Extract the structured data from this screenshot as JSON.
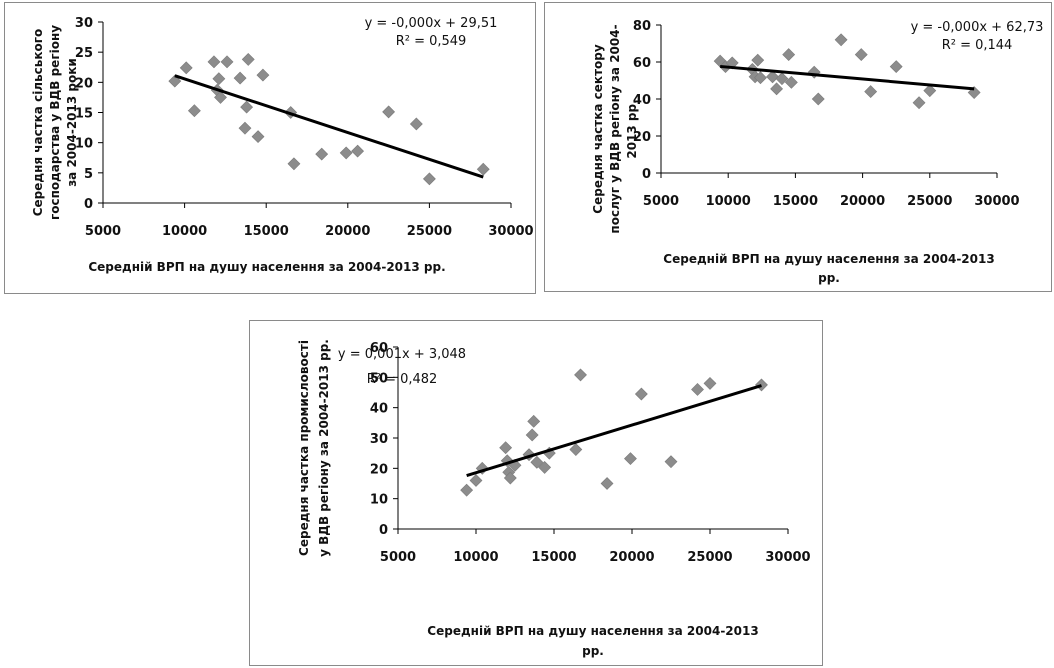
{
  "chart_data": [
    {
      "type": "scatter",
      "xlabel": "Середній ВРП на душу населення за 2004-2013 рр.",
      "ylabel": [
        "Середня частка сільського",
        "господарства у ВДВ регіону",
        "за 2004-2013 роки"
      ],
      "equation": [
        "y = -0,000x + 29,51",
        "R² = 0,549"
      ],
      "xlim": [
        5000,
        30000
      ],
      "ylim": [
        0,
        30
      ],
      "xticks": [
        "5000",
        "10000",
        "15000",
        "20000",
        "25000",
        "30000"
      ],
      "yticks": [
        "0",
        "5",
        "10",
        "15",
        "20",
        "25",
        "30"
      ],
      "points": [
        {
          "x": 9400,
          "y": 20.2
        },
        {
          "x": 10100,
          "y": 22.4
        },
        {
          "x": 10600,
          "y": 15.3
        },
        {
          "x": 11800,
          "y": 23.4
        },
        {
          "x": 12000,
          "y": 18.7
        },
        {
          "x": 12100,
          "y": 20.6
        },
        {
          "x": 12200,
          "y": 17.5
        },
        {
          "x": 12600,
          "y": 23.4
        },
        {
          "x": 13400,
          "y": 20.7
        },
        {
          "x": 13700,
          "y": 12.4
        },
        {
          "x": 13800,
          "y": 15.9
        },
        {
          "x": 13900,
          "y": 23.8
        },
        {
          "x": 14500,
          "y": 11.0
        },
        {
          "x": 14800,
          "y": 21.2
        },
        {
          "x": 16500,
          "y": 15.0
        },
        {
          "x": 16700,
          "y": 6.5
        },
        {
          "x": 18400,
          "y": 8.1
        },
        {
          "x": 19900,
          "y": 8.3
        },
        {
          "x": 20600,
          "y": 8.6
        },
        {
          "x": 22500,
          "y": 15.1
        },
        {
          "x": 24200,
          "y": 13.1
        },
        {
          "x": 25000,
          "y": 4.0
        },
        {
          "x": 28300,
          "y": 5.6
        }
      ],
      "trendline": {
        "x": [
          9400,
          28300
        ],
        "y": [
          21.1,
          4.3
        ]
      }
    },
    {
      "type": "scatter",
      "xlabel": [
        "Середній ВРП на душу населення за 2004-2013",
        "рр."
      ],
      "ylabel": [
        "Середня частка сектору",
        "послуг у ВДВ регіону за 2004-",
        "2013 рр."
      ],
      "equation": [
        "y = -0,000x + 62,73",
        "R² = 0,144"
      ],
      "xlim": [
        5000,
        30000
      ],
      "ylim": [
        0,
        80
      ],
      "xticks": [
        "5000",
        "10000",
        "15000",
        "20000",
        "25000",
        "30000"
      ],
      "yticks": [
        "0",
        "20",
        "40",
        "60",
        "80"
      ],
      "points": [
        {
          "x": 9400,
          "y": 60.5
        },
        {
          "x": 9800,
          "y": 57.5
        },
        {
          "x": 10300,
          "y": 59.5
        },
        {
          "x": 11800,
          "y": 56.0
        },
        {
          "x": 12000,
          "y": 52.0
        },
        {
          "x": 12200,
          "y": 61.0
        },
        {
          "x": 12400,
          "y": 51.5
        },
        {
          "x": 13300,
          "y": 52.0
        },
        {
          "x": 13600,
          "y": 45.5
        },
        {
          "x": 14000,
          "y": 51.0
        },
        {
          "x": 14500,
          "y": 64.0
        },
        {
          "x": 14700,
          "y": 49.0
        },
        {
          "x": 16400,
          "y": 54.5
        },
        {
          "x": 16700,
          "y": 40.0
        },
        {
          "x": 18400,
          "y": 72.0
        },
        {
          "x": 19900,
          "y": 64.0
        },
        {
          "x": 20600,
          "y": 44.0
        },
        {
          "x": 22500,
          "y": 57.5
        },
        {
          "x": 24200,
          "y": 38.0
        },
        {
          "x": 25000,
          "y": 44.5
        },
        {
          "x": 28300,
          "y": 43.5
        }
      ],
      "trendline": {
        "x": [
          9400,
          28300
        ],
        "y": [
          57.6,
          45.5
        ]
      }
    },
    {
      "type": "scatter",
      "xlabel": [
        "Середній ВРП на душу населення за 2004-2013",
        "рр."
      ],
      "ylabel": [
        "Середня частка промисловості",
        "у ВДВ регіону за 2004-2013 рр."
      ],
      "equation": [
        "y = 0,001x + 3,048",
        "R² = 0,482"
      ],
      "xlim": [
        5000,
        30000
      ],
      "ylim": [
        0,
        60
      ],
      "xticks": [
        "5000",
        "10000",
        "15000",
        "20000",
        "25000",
        "30000"
      ],
      "yticks": [
        "0",
        "10",
        "20",
        "30",
        "40",
        "50",
        "60"
      ],
      "points": [
        {
          "x": 9400,
          "y": 12.8
        },
        {
          "x": 10000,
          "y": 16.0
        },
        {
          "x": 10400,
          "y": 20.0
        },
        {
          "x": 11900,
          "y": 26.8
        },
        {
          "x": 12000,
          "y": 22.5
        },
        {
          "x": 12100,
          "y": 18.7
        },
        {
          "x": 12200,
          "y": 16.8
        },
        {
          "x": 12500,
          "y": 21.0
        },
        {
          "x": 13400,
          "y": 24.5
        },
        {
          "x": 13600,
          "y": 31.0
        },
        {
          "x": 13700,
          "y": 35.5
        },
        {
          "x": 13900,
          "y": 22.0
        },
        {
          "x": 14400,
          "y": 20.3
        },
        {
          "x": 14700,
          "y": 25.0
        },
        {
          "x": 16400,
          "y": 26.2
        },
        {
          "x": 16700,
          "y": 50.8
        },
        {
          "x": 18400,
          "y": 15.0
        },
        {
          "x": 19900,
          "y": 23.2
        },
        {
          "x": 20600,
          "y": 44.5
        },
        {
          "x": 22500,
          "y": 22.2
        },
        {
          "x": 24200,
          "y": 46.0
        },
        {
          "x": 25000,
          "y": 48.0
        },
        {
          "x": 28300,
          "y": 47.5
        }
      ],
      "trendline": {
        "x": [
          9400,
          28300
        ],
        "y": [
          17.6,
          47.3
        ]
      }
    }
  ]
}
